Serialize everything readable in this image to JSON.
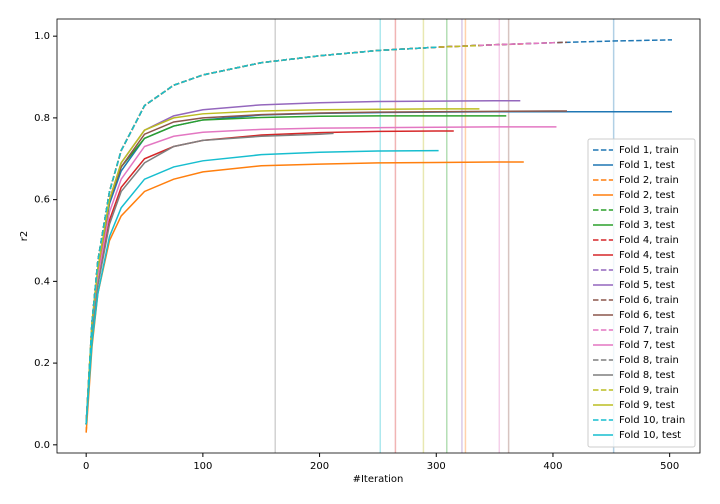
{
  "chart_data": {
    "type": "line",
    "xlabel": "#Iteration",
    "ylabel": "r2",
    "xlim": [
      -25,
      526
    ],
    "ylim": [
      -0.02,
      1.042
    ],
    "xticks": [
      0,
      100,
      200,
      300,
      400,
      500
    ],
    "yticks": [
      {
        "value": 0,
        "label": "0.0"
      },
      {
        "value": 0.2,
        "label": "0.2"
      },
      {
        "value": 0.4,
        "label": "0.4"
      },
      {
        "value": 0.6,
        "label": "0.6"
      },
      {
        "value": 0.8,
        "label": "0.8"
      },
      {
        "value": 1,
        "label": "1.0"
      }
    ],
    "legend": "lower right",
    "vlines": [
      {
        "x": 452,
        "color": "#1f77b4"
      },
      {
        "x": 325,
        "color": "#ff7f0e"
      },
      {
        "x": 309,
        "color": "#2ca02c"
      },
      {
        "x": 265,
        "color": "#d62728"
      },
      {
        "x": 322,
        "color": "#9467bd"
      },
      {
        "x": 362,
        "color": "#8c564b"
      },
      {
        "x": 354,
        "color": "#e377c2"
      },
      {
        "x": 162,
        "color": "#7f7f7f"
      },
      {
        "x": 289,
        "color": "#bcbd22"
      },
      {
        "x": 252,
        "color": "#17becf"
      }
    ],
    "series": [
      {
        "name": "Fold 1, train",
        "color": "#1f77b4",
        "dashed": true,
        "x": [
          0,
          5,
          10,
          20,
          30,
          50,
          75,
          100,
          150,
          200,
          250,
          300,
          350,
          400,
          450,
          502
        ],
        "values": [
          0.05,
          0.3,
          0.45,
          0.62,
          0.72,
          0.83,
          0.88,
          0.905,
          0.935,
          0.952,
          0.965,
          0.973,
          0.979,
          0.984,
          0.988,
          0.991
        ]
      },
      {
        "name": "Fold 1, test",
        "color": "#1f77b4",
        "dashed": false,
        "x": [
          0,
          5,
          10,
          20,
          30,
          50,
          75,
          100,
          150,
          200,
          250,
          300,
          350,
          400,
          450,
          502
        ],
        "values": [
          0.05,
          0.29,
          0.42,
          0.59,
          0.67,
          0.75,
          0.78,
          0.795,
          0.807,
          0.811,
          0.813,
          0.814,
          0.815,
          0.815,
          0.815,
          0.815
        ]
      },
      {
        "name": "Fold 2, train",
        "color": "#ff7f0e",
        "dashed": true,
        "x": [
          0,
          5,
          10,
          20,
          30,
          50,
          75,
          100,
          150,
          200,
          250,
          300,
          350,
          375
        ],
        "values": [
          0.03,
          0.3,
          0.45,
          0.62,
          0.72,
          0.83,
          0.88,
          0.905,
          0.935,
          0.952,
          0.965,
          0.973,
          0.979,
          0.981
        ]
      },
      {
        "name": "Fold 2, test",
        "color": "#ff7f0e",
        "dashed": false,
        "x": [
          0,
          5,
          10,
          20,
          30,
          50,
          75,
          100,
          150,
          200,
          250,
          300,
          350,
          375
        ],
        "values": [
          0.03,
          0.24,
          0.37,
          0.5,
          0.56,
          0.62,
          0.65,
          0.668,
          0.683,
          0.687,
          0.69,
          0.691,
          0.692,
          0.692
        ]
      },
      {
        "name": "Fold 3, train",
        "color": "#2ca02c",
        "dashed": true,
        "x": [
          0,
          5,
          10,
          20,
          30,
          50,
          75,
          100,
          150,
          200,
          250,
          300,
          350,
          360
        ],
        "values": [
          0.05,
          0.3,
          0.45,
          0.62,
          0.72,
          0.83,
          0.88,
          0.905,
          0.935,
          0.952,
          0.965,
          0.973,
          0.979,
          0.98
        ]
      },
      {
        "name": "Fold 3, test",
        "color": "#2ca02c",
        "dashed": false,
        "x": [
          0,
          5,
          10,
          20,
          30,
          50,
          75,
          100,
          150,
          200,
          250,
          300,
          350,
          360
        ],
        "values": [
          0.05,
          0.29,
          0.43,
          0.6,
          0.68,
          0.75,
          0.78,
          0.795,
          0.801,
          0.804,
          0.805,
          0.805,
          0.805,
          0.805
        ]
      },
      {
        "name": "Fold 4, train",
        "color": "#d62728",
        "dashed": true,
        "x": [
          0,
          5,
          10,
          20,
          30,
          50,
          75,
          100,
          150,
          200,
          250,
          300,
          315
        ],
        "values": [
          0.05,
          0.3,
          0.45,
          0.62,
          0.72,
          0.83,
          0.88,
          0.905,
          0.935,
          0.952,
          0.965,
          0.973,
          0.975
        ]
      },
      {
        "name": "Fold 4, test",
        "color": "#d62728",
        "dashed": false,
        "x": [
          0,
          5,
          10,
          20,
          30,
          50,
          75,
          100,
          150,
          200,
          250,
          300,
          315
        ],
        "values": [
          0.05,
          0.27,
          0.4,
          0.55,
          0.63,
          0.7,
          0.73,
          0.745,
          0.758,
          0.764,
          0.767,
          0.768,
          0.768
        ]
      },
      {
        "name": "Fold 5, train",
        "color": "#9467bd",
        "dashed": true,
        "x": [
          0,
          5,
          10,
          20,
          30,
          50,
          75,
          100,
          150,
          200,
          250,
          300,
          350,
          372
        ],
        "values": [
          0.05,
          0.3,
          0.45,
          0.62,
          0.72,
          0.83,
          0.88,
          0.905,
          0.935,
          0.952,
          0.965,
          0.973,
          0.979,
          0.981
        ]
      },
      {
        "name": "Fold 5, test",
        "color": "#9467bd",
        "dashed": false,
        "x": [
          0,
          5,
          10,
          20,
          30,
          50,
          75,
          100,
          150,
          200,
          250,
          300,
          350,
          372
        ],
        "values": [
          0.05,
          0.3,
          0.43,
          0.6,
          0.69,
          0.77,
          0.805,
          0.82,
          0.832,
          0.837,
          0.84,
          0.841,
          0.842,
          0.842
        ]
      },
      {
        "name": "Fold 6, train",
        "color": "#8c564b",
        "dashed": true,
        "x": [
          0,
          5,
          10,
          20,
          30,
          50,
          75,
          100,
          150,
          200,
          250,
          300,
          350,
          400,
          412
        ],
        "values": [
          0.05,
          0.3,
          0.45,
          0.62,
          0.72,
          0.83,
          0.88,
          0.905,
          0.935,
          0.952,
          0.965,
          0.973,
          0.979,
          0.984,
          0.985
        ]
      },
      {
        "name": "Fold 6, test",
        "color": "#8c564b",
        "dashed": false,
        "x": [
          0,
          5,
          10,
          20,
          30,
          50,
          75,
          100,
          150,
          200,
          250,
          300,
          350,
          400,
          412
        ],
        "values": [
          0.05,
          0.29,
          0.42,
          0.6,
          0.68,
          0.76,
          0.79,
          0.8,
          0.808,
          0.812,
          0.814,
          0.815,
          0.816,
          0.817,
          0.817
        ]
      },
      {
        "name": "Fold 7, train",
        "color": "#e377c2",
        "dashed": true,
        "x": [
          0,
          5,
          10,
          20,
          30,
          50,
          75,
          100,
          150,
          200,
          250,
          300,
          350,
          400,
          403
        ],
        "values": [
          0.05,
          0.3,
          0.45,
          0.62,
          0.72,
          0.83,
          0.88,
          0.905,
          0.935,
          0.952,
          0.965,
          0.973,
          0.979,
          0.984,
          0.984
        ]
      },
      {
        "name": "Fold 7, test",
        "color": "#e377c2",
        "dashed": false,
        "x": [
          0,
          5,
          10,
          20,
          30,
          50,
          75,
          100,
          150,
          200,
          250,
          300,
          350,
          400,
          403
        ],
        "values": [
          0.05,
          0.28,
          0.41,
          0.57,
          0.65,
          0.73,
          0.755,
          0.765,
          0.772,
          0.775,
          0.776,
          0.777,
          0.778,
          0.778,
          0.778
        ]
      },
      {
        "name": "Fold 8, train",
        "color": "#7f7f7f",
        "dashed": true,
        "x": [
          0,
          5,
          10,
          20,
          30,
          50,
          75,
          100,
          150,
          200,
          212
        ],
        "values": [
          0.05,
          0.3,
          0.45,
          0.62,
          0.72,
          0.83,
          0.88,
          0.905,
          0.935,
          0.952,
          0.955
        ]
      },
      {
        "name": "Fold 8, test",
        "color": "#7f7f7f",
        "dashed": false,
        "x": [
          0,
          5,
          10,
          20,
          30,
          50,
          75,
          100,
          150,
          200,
          212
        ],
        "values": [
          0.05,
          0.27,
          0.39,
          0.54,
          0.62,
          0.69,
          0.73,
          0.745,
          0.755,
          0.76,
          0.762
        ]
      },
      {
        "name": "Fold 9, train",
        "color": "#bcbd22",
        "dashed": true,
        "x": [
          0,
          5,
          10,
          20,
          30,
          50,
          75,
          100,
          150,
          200,
          250,
          300,
          337
        ],
        "values": [
          0.05,
          0.3,
          0.45,
          0.62,
          0.72,
          0.83,
          0.88,
          0.905,
          0.935,
          0.952,
          0.965,
          0.973,
          0.977
        ]
      },
      {
        "name": "Fold 9, test",
        "color": "#bcbd22",
        "dashed": false,
        "x": [
          0,
          5,
          10,
          20,
          30,
          50,
          75,
          100,
          150,
          200,
          250,
          300,
          337
        ],
        "values": [
          0.05,
          0.3,
          0.43,
          0.6,
          0.69,
          0.77,
          0.8,
          0.81,
          0.817,
          0.82,
          0.821,
          0.822,
          0.822
        ]
      },
      {
        "name": "Fold 10, train",
        "color": "#17becf",
        "dashed": true,
        "x": [
          0,
          5,
          10,
          20,
          30,
          50,
          75,
          100,
          150,
          200,
          250,
          300,
          302
        ],
        "values": [
          0.05,
          0.3,
          0.45,
          0.62,
          0.72,
          0.83,
          0.88,
          0.905,
          0.935,
          0.952,
          0.965,
          0.973,
          0.973
        ]
      },
      {
        "name": "Fold 10, test",
        "color": "#17becf",
        "dashed": false,
        "x": [
          0,
          5,
          10,
          20,
          30,
          50,
          75,
          100,
          150,
          200,
          250,
          300,
          302
        ],
        "values": [
          0.05,
          0.25,
          0.37,
          0.51,
          0.58,
          0.65,
          0.68,
          0.695,
          0.71,
          0.716,
          0.719,
          0.72,
          0.72
        ]
      }
    ]
  }
}
